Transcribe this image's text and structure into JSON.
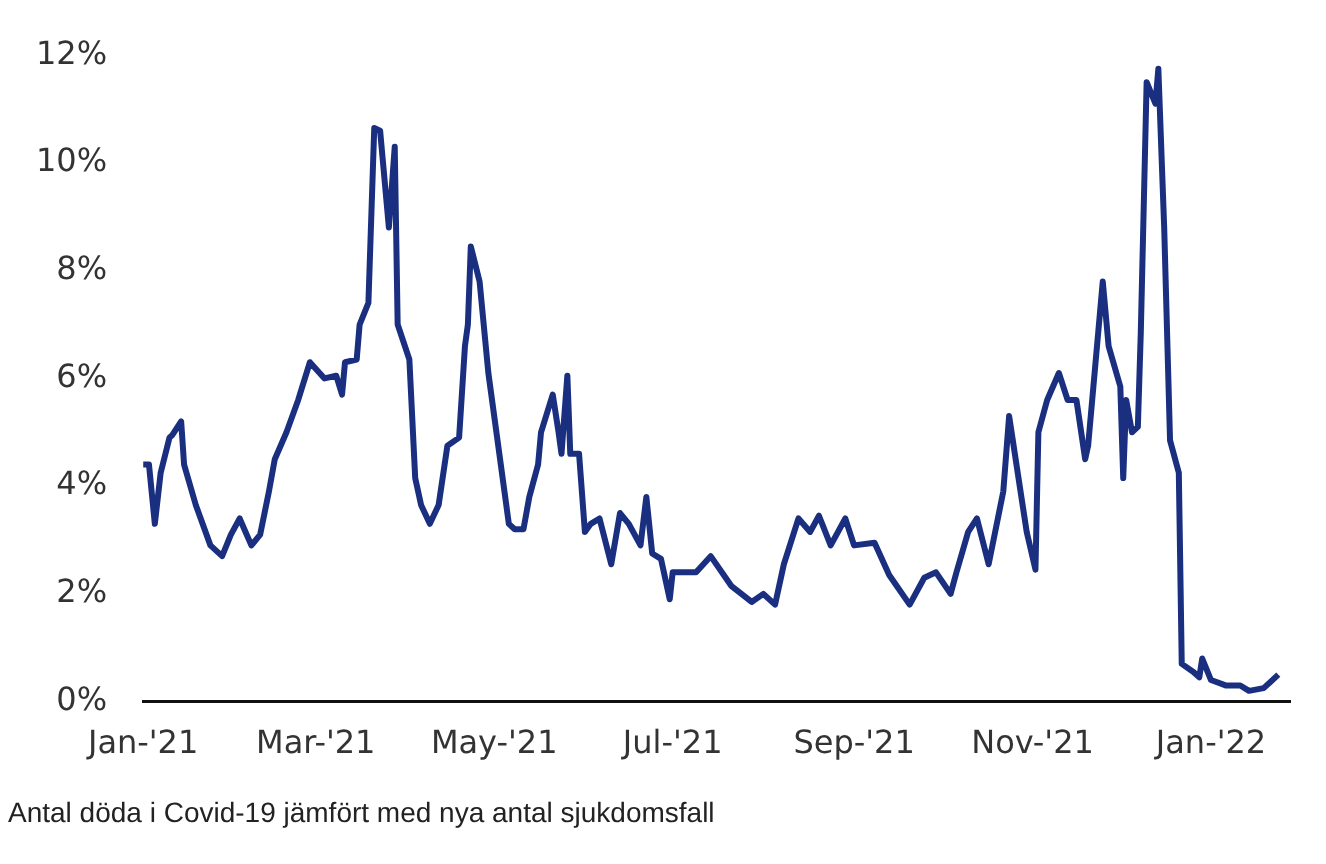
{
  "chart_data": {
    "type": "line",
    "annotations": [
      "Antal döda i Covid-19 jämfört med nya antal sjukdomsfall"
    ],
    "x": [
      "2021-01-01",
      "2021-01-03",
      "2021-01-05",
      "2021-01-07",
      "2021-01-10",
      "2021-01-11",
      "2021-01-14",
      "2021-01-15",
      "2021-01-19",
      "2021-01-24",
      "2021-01-28",
      "2021-01-31",
      "2021-02-03",
      "2021-02-07",
      "2021-02-10",
      "2021-02-13",
      "2021-02-15",
      "2021-02-19",
      "2021-02-23",
      "2021-02-27",
      "2021-03-04",
      "2021-03-08",
      "2021-03-10",
      "2021-03-11",
      "2021-03-15",
      "2021-03-16",
      "2021-03-19",
      "2021-03-21",
      "2021-03-23",
      "2021-03-26",
      "2021-03-28",
      "2021-03-29",
      "2021-04-02",
      "2021-04-04",
      "2021-04-06",
      "2021-04-09",
      "2021-04-12",
      "2021-04-15",
      "2021-04-19",
      "2021-04-21",
      "2021-04-22",
      "2021-04-23",
      "2021-04-26",
      "2021-04-29",
      "2021-05-03",
      "2021-05-06",
      "2021-05-08",
      "2021-05-11",
      "2021-05-13",
      "2021-05-16",
      "2021-05-17",
      "2021-05-21",
      "2021-05-23",
      "2021-05-24",
      "2021-05-26",
      "2021-05-27",
      "2021-05-30",
      "2021-06-01",
      "2021-06-03",
      "2021-06-06",
      "2021-06-10",
      "2021-06-13",
      "2021-06-16",
      "2021-06-20",
      "2021-06-22",
      "2021-06-24",
      "2021-06-27",
      "2021-06-30",
      "2021-07-01",
      "2021-07-04",
      "2021-07-09",
      "2021-07-14",
      "2021-07-21",
      "2021-07-28",
      "2021-08-01",
      "2021-08-05",
      "2021-08-08",
      "2021-08-13",
      "2021-08-17",
      "2021-08-20",
      "2021-08-24",
      "2021-08-29",
      "2021-09-01",
      "2021-09-08",
      "2021-09-13",
      "2021-09-20",
      "2021-09-25",
      "2021-09-29",
      "2021-10-04",
      "2021-10-06",
      "2021-10-10",
      "2021-10-13",
      "2021-10-17",
      "2021-10-22",
      "2021-10-24",
      "2021-10-30",
      "2021-11-02",
      "2021-11-03",
      "2021-11-06",
      "2021-11-10",
      "2021-11-13",
      "2021-11-16",
      "2021-11-19",
      "2021-11-20",
      "2021-11-25",
      "2021-11-27",
      "2021-12-01",
      "2021-12-02",
      "2021-12-03",
      "2021-12-05",
      "2021-12-07",
      "2021-12-08",
      "2021-12-10",
      "2021-12-13",
      "2021-12-14",
      "2021-12-16",
      "2021-12-18",
      "2021-12-21",
      "2021-12-22",
      "2021-12-26",
      "2021-12-28",
      "2021-12-29",
      "2022-01-01",
      "2022-01-06",
      "2022-01-11",
      "2022-01-14",
      "2022-01-19",
      "2022-01-24"
    ],
    "series": [
      {
        "color": "#1b2f80",
        "values": [
          4.4,
          4.4,
          3.3,
          4.25,
          4.9,
          4.95,
          5.2,
          4.4,
          3.65,
          2.9,
          2.7,
          3.1,
          3.4,
          2.9,
          3.1,
          3.9,
          4.5,
          5.0,
          5.6,
          6.3,
          6.0,
          6.05,
          5.7,
          6.3,
          6.35,
          7.0,
          7.4,
          10.65,
          10.6,
          8.8,
          10.3,
          7.0,
          6.35,
          4.15,
          3.65,
          3.3,
          3.65,
          4.75,
          4.9,
          6.6,
          7.0,
          8.45,
          7.8,
          6.1,
          4.5,
          3.3,
          3.2,
          3.2,
          3.8,
          4.4,
          5.0,
          5.7,
          5.0,
          4.6,
          6.05,
          4.6,
          4.6,
          3.15,
          3.3,
          3.4,
          2.55,
          3.5,
          3.3,
          2.9,
          3.8,
          2.75,
          2.65,
          1.9,
          2.4,
          2.4,
          2.4,
          2.7,
          2.15,
          1.85,
          2.0,
          1.8,
          2.55,
          3.4,
          3.15,
          3.45,
          2.9,
          3.4,
          2.9,
          2.95,
          2.35,
          1.8,
          2.3,
          2.4,
          2.0,
          2.4,
          3.15,
          3.4,
          2.55,
          3.9,
          5.3,
          3.15,
          2.45,
          5.0,
          5.6,
          6.1,
          5.6,
          5.6,
          4.5,
          4.75,
          7.8,
          6.6,
          5.85,
          4.15,
          5.6,
          5.0,
          5.1,
          6.85,
          11.5,
          11.1,
          11.75,
          8.8,
          4.85,
          4.25,
          0.7,
          0.55,
          0.45,
          0.8,
          0.4,
          0.3,
          0.3,
          0.2,
          0.25,
          0.5
        ]
      }
    ],
    "xlim": [
      "2021-01-01",
      "2022-01-28"
    ],
    "xticks": [
      {
        "value": "2021-01",
        "label": "Jan-'21"
      },
      {
        "value": "2021-03",
        "label": "Mar-'21"
      },
      {
        "value": "2021-05",
        "label": "May-'21"
      },
      {
        "value": "2021-07",
        "label": "Jul-'21"
      },
      {
        "value": "2021-09",
        "label": "Sep-'21"
      },
      {
        "value": "2021-11",
        "label": "Nov-'21"
      },
      {
        "value": "2022-01",
        "label": "Jan-'22"
      }
    ],
    "ylim": [
      0,
      12
    ],
    "yticks": [
      {
        "value": 0,
        "label": "0%"
      },
      {
        "value": 2,
        "label": "2%"
      },
      {
        "value": 4,
        "label": "4%"
      },
      {
        "value": 6,
        "label": "6%"
      },
      {
        "value": 8,
        "label": "8%"
      },
      {
        "value": 10,
        "label": "10%"
      },
      {
        "value": 12,
        "label": "12%"
      }
    ],
    "grid": false,
    "legend": false,
    "marker": "none",
    "line_style": "solid"
  }
}
